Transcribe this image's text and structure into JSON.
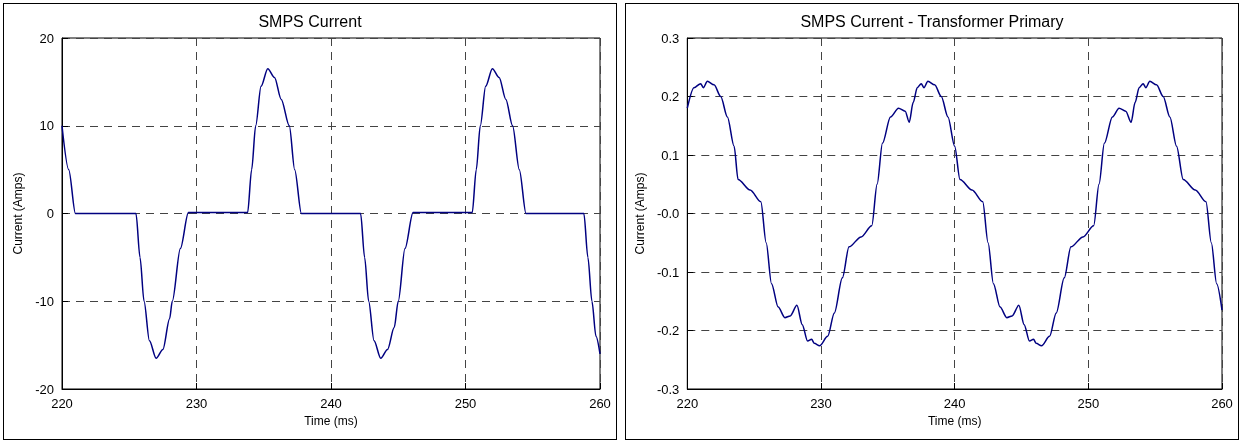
{
  "chart_data": [
    {
      "type": "line",
      "title": "SMPS Current",
      "xlabel": "Time (ms)",
      "ylabel": "Current (Amps)",
      "xlim": [
        220,
        260
      ],
      "xticks": [
        220,
        230,
        240,
        250,
        260
      ],
      "ylim": [
        -20,
        20
      ],
      "yticks": [
        -20,
        -10,
        0,
        10,
        20
      ],
      "grid": true,
      "marker": "none",
      "line_style": "solid",
      "series": [
        {
          "color": "#000080",
          "x": [
            220,
            220.5,
            221,
            225.5,
            225.8,
            226.1,
            226.5,
            227.0,
            227.5,
            228.0,
            228.2,
            228.8,
            229.4,
            233.8,
            234.1,
            234.4,
            234.8,
            235.3,
            235.8,
            236.3,
            236.9,
            237.3,
            237.8,
            242.2,
            242.5,
            242.8,
            243.2,
            243.7,
            244.2,
            244.7,
            245.0,
            245.5,
            246.1,
            250.5,
            250.8,
            251.1,
            251.5,
            252.0,
            252.5,
            253.0,
            253.5,
            254.0,
            254.5,
            258.8,
            259.1,
            259.4,
            259.7,
            260
          ],
          "values": [
            10,
            5,
            0,
            0,
            -5,
            -10,
            -14.5,
            -16.5,
            -15.5,
            -12,
            -10,
            -4,
            0.1,
            0.1,
            5,
            10,
            14.5,
            16.5,
            15.5,
            13,
            10,
            5,
            0,
            0,
            -5,
            -10,
            -14.5,
            -16.5,
            -15.5,
            -13,
            -10,
            -4,
            0.1,
            0.1,
            5,
            10,
            14.5,
            16.5,
            15.5,
            13,
            10,
            5,
            0,
            0,
            -5,
            -10,
            -14,
            -16
          ]
        }
      ]
    },
    {
      "type": "line",
      "title": "SMPS Current - Transformer Primary",
      "xlabel": "Time (ms)",
      "ylabel": "Current (Amps)",
      "xlim": [
        220,
        260
      ],
      "xticks": [
        220,
        230,
        240,
        250,
        260
      ],
      "ylim": [
        -0.3,
        0.3
      ],
      "yticks": [
        -0.3,
        -0.2,
        -0.1,
        {
          "value": 0,
          "label": "-0.0"
        },
        0.1,
        0.2,
        0.3
      ],
      "grid": true,
      "marker": "none",
      "line_style": "solid",
      "series": [
        {
          "color": "#000080",
          "x": [
            220,
            220.5,
            221,
            221.2,
            221.5,
            222,
            222.5,
            223,
            223.5,
            223.8,
            224.7,
            225.5,
            225.9,
            226.3,
            226.8,
            227.3,
            227.7,
            228.2,
            228.6,
            229,
            229.3,
            229.5,
            229.9,
            230.5,
            231,
            231.6,
            232.1,
            233,
            233.8,
            234.2,
            234.6,
            235.2,
            235.8,
            236.3,
            236.6,
            236.9,
            237.2,
            237.5,
            237.7,
            238,
            238.5,
            239,
            239.5,
            240,
            240.4,
            241.3,
            242.1,
            242.5,
            242.9,
            243.4,
            243.9,
            244.3,
            244.8,
            245.2,
            245.6,
            245.9,
            246.1,
            246.5,
            247.1,
            247.6,
            248.2,
            248.7,
            249.6,
            250.4,
            250.8,
            251.2,
            251.8,
            252.3,
            252.8,
            253.2,
            253.5,
            253.8,
            254.1,
            254.3,
            254.6,
            255.1,
            255.6,
            256.1,
            256.6,
            257.1,
            258,
            258.8,
            259.2,
            259.6,
            260
          ],
          "values": [
            0.18,
            0.215,
            0.222,
            0.215,
            0.226,
            0.22,
            0.2,
            0.165,
            0.115,
            0.058,
            0.04,
            0.02,
            -0.05,
            -0.12,
            -0.16,
            -0.178,
            -0.175,
            -0.157,
            -0.19,
            -0.218,
            -0.215,
            -0.222,
            -0.226,
            -0.21,
            -0.17,
            -0.11,
            -0.057,
            -0.04,
            -0.021,
            0.05,
            0.12,
            0.165,
            0.18,
            0.175,
            0.156,
            0.19,
            0.215,
            0.222,
            0.215,
            0.226,
            0.22,
            0.2,
            0.165,
            0.115,
            0.058,
            0.04,
            0.02,
            -0.05,
            -0.12,
            -0.16,
            -0.178,
            -0.175,
            -0.157,
            -0.19,
            -0.218,
            -0.215,
            -0.222,
            -0.226,
            -0.21,
            -0.17,
            -0.11,
            -0.057,
            -0.04,
            -0.021,
            0.05,
            0.12,
            0.165,
            0.18,
            0.175,
            0.156,
            0.19,
            0.215,
            0.222,
            0.215,
            0.226,
            0.22,
            0.2,
            0.165,
            0.115,
            0.058,
            0.04,
            0.02,
            -0.05,
            -0.12,
            -0.165
          ]
        }
      ]
    }
  ]
}
